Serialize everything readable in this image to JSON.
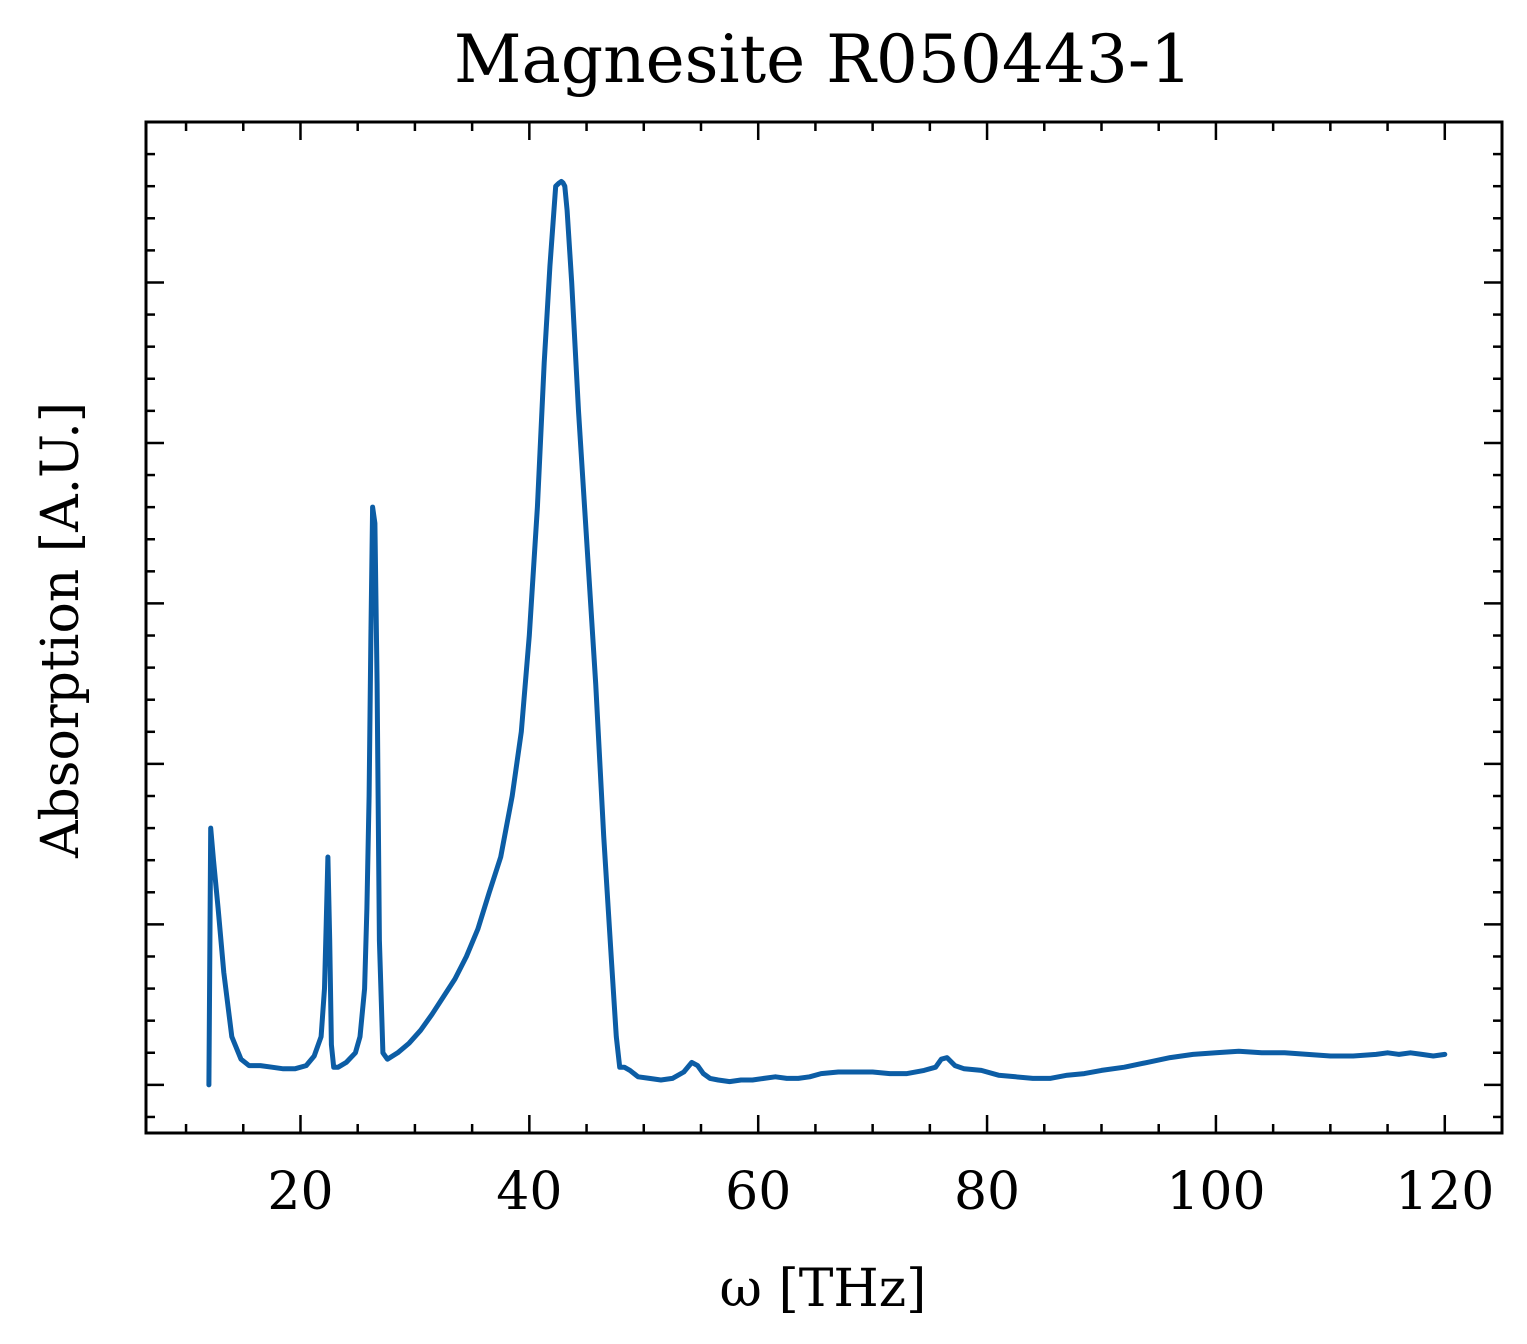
{
  "chart_data": {
    "type": "line",
    "title": "Magnesite R050443-1",
    "xlabel": "ω [THz]",
    "ylabel": "Absorption [A.U.]",
    "xlim": [
      6.5,
      125
    ],
    "ylim": [
      -0.3,
      6.0
    ],
    "x_ticks": [
      20,
      40,
      60,
      80,
      100,
      120
    ],
    "x_tick_labels": [
      "20",
      "40",
      "60",
      "80",
      "100",
      "120"
    ],
    "y_major_ticks": [
      0,
      1,
      2,
      3,
      4,
      5
    ],
    "y_tick_labels_shown": false,
    "grid": false,
    "line_color": "#0C5DA5",
    "series": [
      {
        "x": [
          12.0,
          12.15,
          12.4,
          12.8,
          13.3,
          14.0,
          14.8,
          15.5,
          16.5,
          17.5,
          18.5,
          19.5,
          20.5,
          21.2,
          21.8,
          22.1,
          22.25,
          22.4,
          22.55,
          22.7,
          22.9,
          23.3,
          24.0,
          24.8,
          25.2,
          25.6,
          25.8,
          26.0,
          26.15,
          26.3,
          26.5,
          26.7,
          26.9,
          27.2,
          27.6,
          28.5,
          29.5,
          30.5,
          31.5,
          32.5,
          33.5,
          34.5,
          35.5,
          36.5,
          37.5,
          38.5,
          39.3,
          40.0,
          40.7,
          41.3,
          41.8,
          42.3,
          42.6,
          42.8,
          42.95,
          43.1,
          43.3,
          43.7,
          44.3,
          45.0,
          45.8,
          46.5,
          47.2,
          47.6,
          47.9,
          48.3,
          48.8,
          49.5,
          50.5,
          51.5,
          52.5,
          53.5,
          54.2,
          54.7,
          55.2,
          55.8,
          56.5,
          57.5,
          58.5,
          59.5,
          60.5,
          61.5,
          62.5,
          63.5,
          64.5,
          65.5,
          67.0,
          68.5,
          70.0,
          71.5,
          73.0,
          74.5,
          75.5,
          76.0,
          76.5,
          77.2,
          78.0,
          79.5,
          81.0,
          82.5,
          84.0,
          85.5,
          87.0,
          88.5,
          90.0,
          92.0,
          94.0,
          96.0,
          98.0,
          100.0,
          102.0,
          104.0,
          106.0,
          108.0,
          110.0,
          112.0,
          114.0,
          115.0,
          116.0,
          117.0,
          118.0,
          119.0,
          120.0
        ],
        "y": [
          0.0,
          1.6,
          1.4,
          1.1,
          0.7,
          0.3,
          0.16,
          0.12,
          0.12,
          0.11,
          0.1,
          0.1,
          0.12,
          0.18,
          0.3,
          0.6,
          1.0,
          1.42,
          0.9,
          0.25,
          0.11,
          0.11,
          0.14,
          0.2,
          0.3,
          0.6,
          1.1,
          1.8,
          2.8,
          3.6,
          3.5,
          2.5,
          0.9,
          0.2,
          0.16,
          0.2,
          0.26,
          0.34,
          0.44,
          0.55,
          0.66,
          0.8,
          0.97,
          1.2,
          1.42,
          1.8,
          2.2,
          2.8,
          3.6,
          4.5,
          5.1,
          5.6,
          5.62,
          5.63,
          5.62,
          5.6,
          5.45,
          5.0,
          4.2,
          3.4,
          2.5,
          1.55,
          0.75,
          0.3,
          0.11,
          0.11,
          0.09,
          0.05,
          0.04,
          0.03,
          0.04,
          0.08,
          0.14,
          0.12,
          0.07,
          0.04,
          0.03,
          0.02,
          0.03,
          0.03,
          0.04,
          0.05,
          0.04,
          0.04,
          0.05,
          0.07,
          0.08,
          0.08,
          0.08,
          0.07,
          0.07,
          0.09,
          0.11,
          0.16,
          0.17,
          0.12,
          0.1,
          0.09,
          0.06,
          0.05,
          0.04,
          0.04,
          0.06,
          0.07,
          0.09,
          0.11,
          0.14,
          0.17,
          0.19,
          0.2,
          0.21,
          0.2,
          0.2,
          0.19,
          0.18,
          0.18,
          0.19,
          0.2,
          0.19,
          0.2,
          0.19,
          0.18,
          0.19
        ]
      }
    ]
  }
}
